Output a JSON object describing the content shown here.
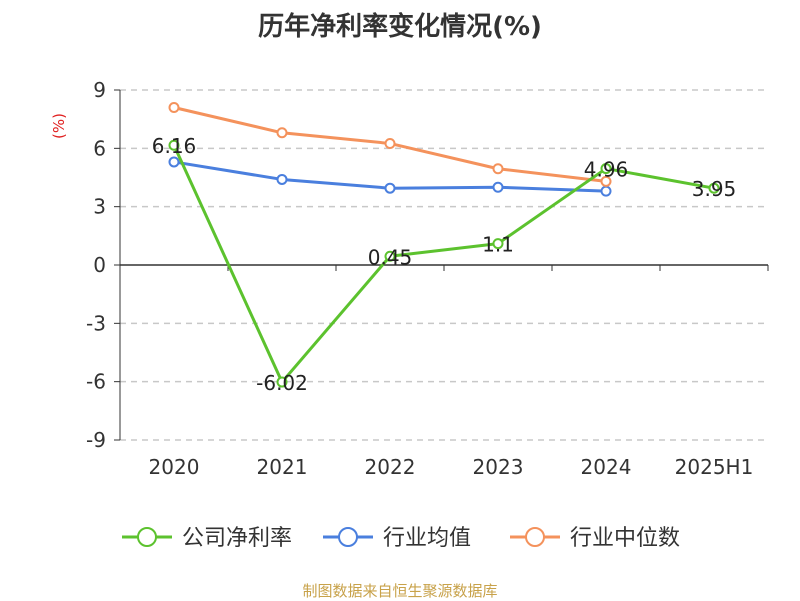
{
  "title": "历年净利率变化情况(%)",
  "source": "制图数据来自恒生聚源数据库",
  "chart_data": {
    "type": "line",
    "title": "历年净利率变化情况(%)",
    "ylabel": "(%)",
    "categories": [
      "2020",
      "2021",
      "2022",
      "2023",
      "2024",
      "2025H1"
    ],
    "ylim": [
      -9,
      9
    ],
    "yticks": [
      -9,
      -6,
      -3,
      0,
      3,
      6,
      9
    ],
    "grid": true,
    "legend": "bottom",
    "series": [
      {
        "name": "公司净利率",
        "color": "#5cc22e",
        "values": [
          6.16,
          -6.02,
          0.45,
          1.1,
          4.96,
          3.95
        ],
        "labels": [
          "6.16",
          "-6.02",
          "0.45",
          "1.1",
          "4.96",
          "3.95"
        ]
      },
      {
        "name": "行业均值",
        "color": "#4a7fde",
        "values": [
          5.3,
          4.4,
          3.95,
          4.0,
          3.8,
          null
        ]
      },
      {
        "name": "行业中位数",
        "color": "#f4925c",
        "values": [
          8.1,
          6.8,
          6.25,
          4.95,
          4.3,
          null
        ]
      }
    ]
  }
}
